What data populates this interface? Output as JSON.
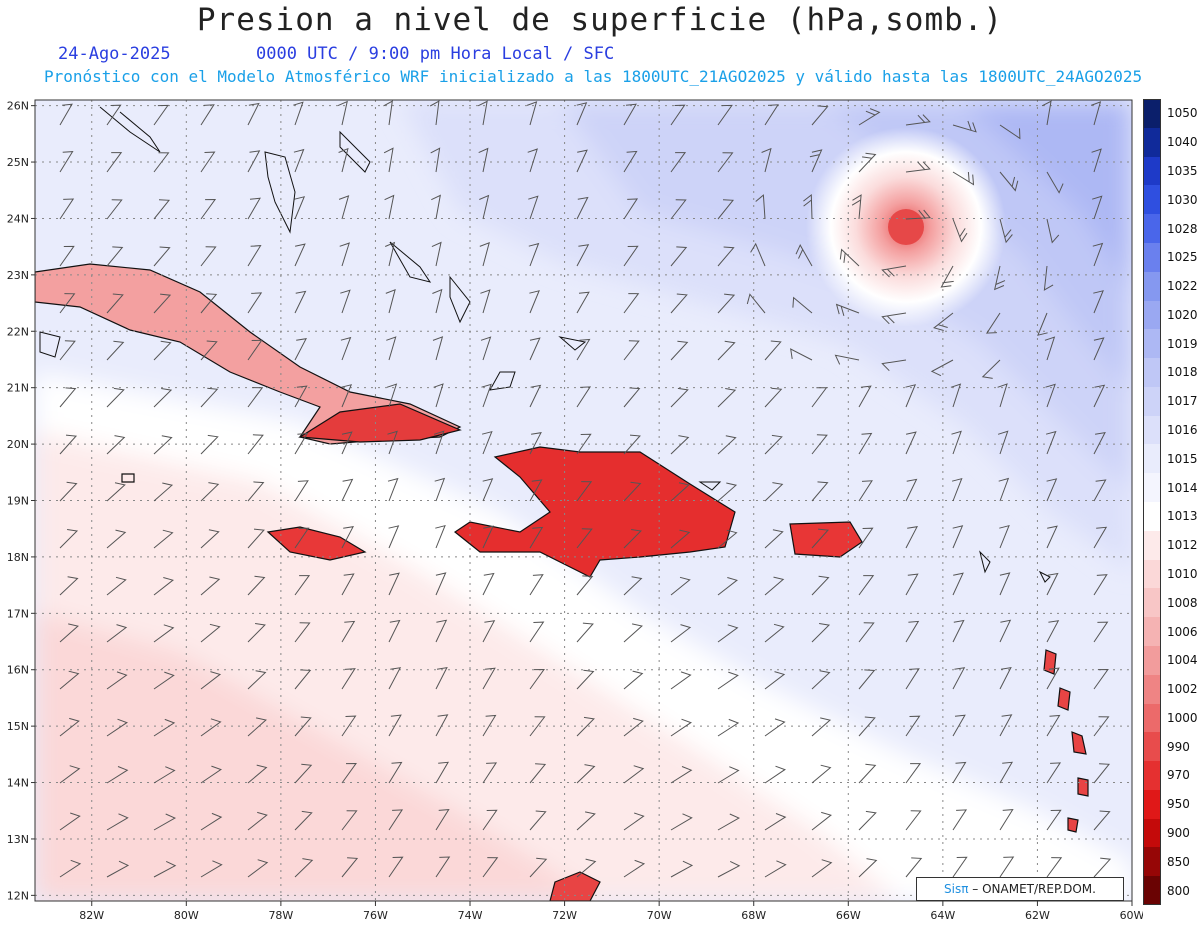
{
  "header": {
    "title": "Presion a nivel de superficie (hPa,somb.)",
    "date": "24-Ago-2025",
    "time": "0000 UTC / 9:00 pm Hora Local / SFC",
    "forecast": "Pronóstico con el Modelo Atmosférico WRF inicializado a las 1800UTC_21AGO2025 y válido hasta las  1800UTC_24AGO2025"
  },
  "map": {
    "lon_labels": [
      "82W",
      "80W",
      "78W",
      "76W",
      "74W",
      "72W",
      "70W",
      "68W",
      "66W",
      "64W",
      "62W",
      "60W"
    ],
    "lat_labels": [
      "26N",
      "25N",
      "24N",
      "23N",
      "22N",
      "21N",
      "20N",
      "19N",
      "18N",
      "17N",
      "16N",
      "15N",
      "14N",
      "13N",
      "12N"
    ],
    "lon_range": [
      -83.2,
      -60
    ],
    "lat_range": [
      11.9,
      26.1
    ],
    "cyclone_center": {
      "lon": -64.8,
      "lat": 23.8
    }
  },
  "colorbar": {
    "levels": [
      "1050",
      "1040",
      "1035",
      "1030",
      "1028",
      "1025",
      "1022",
      "1020",
      "1019",
      "1018",
      "1017",
      "1016",
      "1015",
      "1014",
      "1013",
      "1012",
      "1010",
      "1008",
      "1006",
      "1004",
      "1002",
      "1000",
      "990",
      "970",
      "950",
      "900",
      "850",
      "800"
    ],
    "colors": [
      "#0b1f6b",
      "#102a9a",
      "#1e3ac8",
      "#2f4fe0",
      "#4a66ea",
      "#6a80ee",
      "#8598f0",
      "#9aa8f2",
      "#adb8f4",
      "#bfc7f6",
      "#cdd3f8",
      "#dce0fa",
      "#e9ecfc",
      "#f4f5fe",
      "#ffffff",
      "#fdeaea",
      "#fbd8d8",
      "#f8c6c6",
      "#f5b3b3",
      "#f29c9c",
      "#ef8484",
      "#ec6a6a",
      "#e84c4c",
      "#e53030",
      "#e01818",
      "#c40a0a",
      "#960606",
      "#6a0303"
    ]
  },
  "credit": {
    "brand": "Sisπ",
    "text": "– ONAMET/REP.DOM."
  }
}
